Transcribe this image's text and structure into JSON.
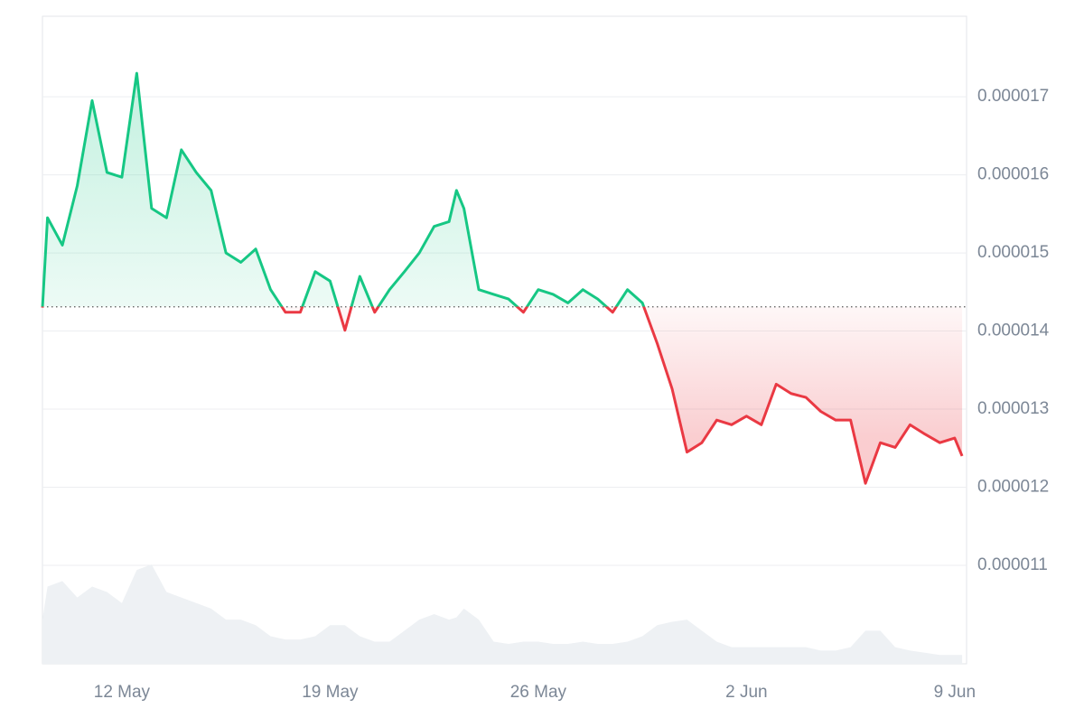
{
  "chart_data": {
    "type": "line",
    "x": [
      9.33,
      9.5,
      10,
      10.5,
      11,
      11.5,
      12,
      12.5,
      13,
      13.5,
      14,
      14.5,
      15,
      15.5,
      16,
      16.5,
      17,
      17.5,
      18,
      18.5,
      19,
      19.5,
      20,
      20.5,
      21,
      21.5,
      22,
      22.5,
      23,
      23.25,
      23.5,
      24,
      24.5,
      25,
      25.5,
      26,
      26.5,
      27,
      27.5,
      28,
      28.5,
      29,
      29.5,
      30,
      30.5,
      31,
      31.5,
      32,
      32.5,
      33,
      33.5,
      34,
      34.5,
      35,
      35.5,
      36,
      36.5,
      37,
      37.5,
      38,
      38.5,
      39,
      39.5,
      40,
      40.25
    ],
    "series": [
      {
        "name": "Price",
        "up_color": "#16c784",
        "down_color": "#ea3943",
        "values": [
          1.43e-05,
          1.545e-05,
          1.51e-05,
          1.586e-05,
          1.695e-05,
          1.603e-05,
          1.597e-05,
          1.73e-05,
          1.557e-05,
          1.545e-05,
          1.632e-05,
          1.603e-05,
          1.58e-05,
          1.5e-05,
          1.488e-05,
          1.505e-05,
          1.453e-05,
          1.424e-05,
          1.424e-05,
          1.476e-05,
          1.464e-05,
          1.401e-05,
          1.47e-05,
          1.424e-05,
          1.453e-05,
          1.476e-05,
          1.5e-05,
          1.534e-05,
          1.54e-05,
          1.58e-05,
          1.557e-05,
          1.453e-05,
          1.447e-05,
          1.441e-05,
          1.424e-05,
          1.453e-05,
          1.447e-05,
          1.436e-05,
          1.453e-05,
          1.441e-05,
          1.424e-05,
          1.453e-05,
          1.436e-05,
          1.384e-05,
          1.326e-05,
          1.245e-05,
          1.257e-05,
          1.286e-05,
          1.28e-05,
          1.291e-05,
          1.28e-05,
          1.332e-05,
          1.32e-05,
          1.315e-05,
          1.297e-05,
          1.286e-05,
          1.286e-05,
          1.205e-05,
          1.257e-05,
          1.251e-05,
          1.28e-05,
          1.268e-05,
          1.257e-05,
          1.263e-05,
          1.24e-05
        ]
      },
      {
        "name": "Volume",
        "color": "#eef1f4",
        "values": [
          40,
          70,
          75,
          60,
          70,
          65,
          55,
          85,
          90,
          65,
          60,
          55,
          50,
          40,
          40,
          35,
          25,
          22,
          22,
          25,
          35,
          35,
          25,
          20,
          20,
          30,
          40,
          45,
          40,
          42,
          50,
          40,
          20,
          18,
          20,
          20,
          18,
          18,
          20,
          18,
          18,
          20,
          25,
          35,
          38,
          40,
          30,
          20,
          15,
          15,
          15,
          15,
          15,
          15,
          12,
          12,
          15,
          30,
          30,
          15,
          12,
          10,
          8,
          8,
          8
        ]
      }
    ],
    "baseline": 1.431e-05,
    "xlim": [
      9.33,
      40.4
    ],
    "xticks": [
      {
        "value": 12,
        "label": "12 May"
      },
      {
        "value": 19,
        "label": "19 May"
      },
      {
        "value": 26,
        "label": "26 May"
      },
      {
        "value": 33,
        "label": "2 Jun"
      },
      {
        "value": 40,
        "label": "9 Jun"
      }
    ],
    "ylim": [
      9.74e-06,
      1.803e-05
    ],
    "yticks": [
      1.1e-05,
      1.2e-05,
      1.3e-05,
      1.4e-05,
      1.5e-05,
      1.6e-05,
      1.7e-05
    ],
    "grid": true
  }
}
